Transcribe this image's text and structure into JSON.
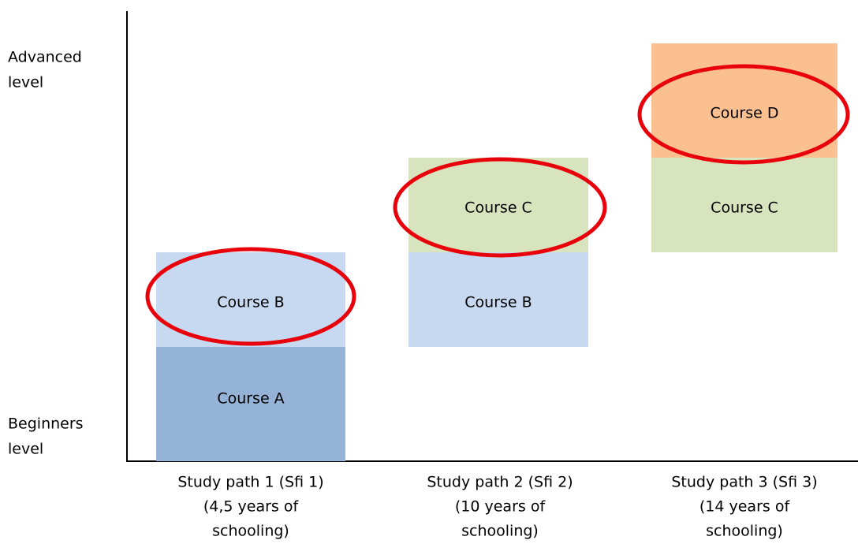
{
  "axis_labels": {
    "top": [
      "Advanced",
      "level"
    ],
    "bottom": [
      "Beginners",
      "level"
    ]
  },
  "columns": [
    {
      "label": [
        "Study path 1 (Sfi 1)",
        "(4,5 years of",
        "schooling)"
      ],
      "blocks": [
        "Course A",
        "Course B"
      ]
    },
    {
      "label": [
        "Study path 2 (Sfi 2)",
        "(10 years of",
        "schooling)"
      ],
      "blocks": [
        "Course B",
        "Course C"
      ]
    },
    {
      "label": [
        "Study path 3 (Sfi 3)",
        "(14 years of",
        "schooling)"
      ],
      "blocks": [
        "Course C",
        "Course D"
      ]
    }
  ]
}
